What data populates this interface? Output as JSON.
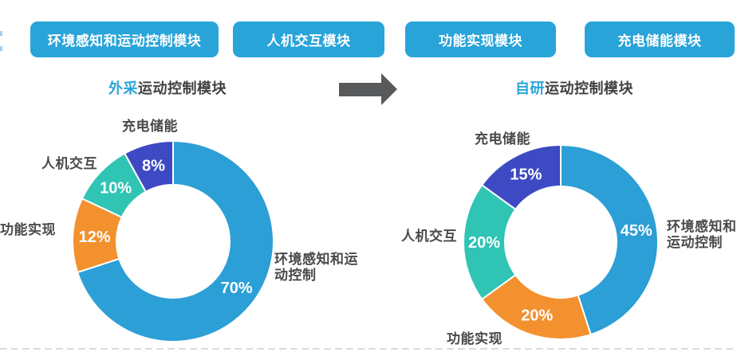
{
  "colors": {
    "accent": "#29A4D9",
    "title_text": "#404042",
    "label_text": "#4A4A4C",
    "arrow": "#58595B",
    "dash_line": "#DADADA",
    "segment_light_blue": "#2B9FD6",
    "segment_orange": "#F3912F",
    "segment_teal": "#2FC4B4",
    "segment_royal_blue": "#3E4AC3"
  },
  "modules": {
    "items": [
      {
        "label": "环境感知和运动控制模块"
      },
      {
        "label": "人机交互模块"
      },
      {
        "label": "功能实现模块"
      },
      {
        "label": "充电储能模块"
      }
    ]
  },
  "arrow": {
    "direction": "right",
    "color": "#58595B"
  },
  "chart_data": [
    {
      "type": "pie",
      "subtype": "donut",
      "title": "外采运动控制模块",
      "title_highlight": "外采",
      "title_rest": "运动控制模块",
      "unit": "%",
      "start_angle_deg": 0,
      "direction": "clockwise",
      "segments": [
        {
          "label": "环境感知和运动控制",
          "value": 70,
          "color": "#2B9FD6"
        },
        {
          "label": "功能实现",
          "value": 12,
          "color": "#F3912F"
        },
        {
          "label": "人机交互",
          "value": 10,
          "color": "#2FC4B4"
        },
        {
          "label": "充电储能",
          "value": 8,
          "color": "#3E4AC3"
        }
      ],
      "data_labels": [
        "70%",
        "12%",
        "10%",
        "8%"
      ]
    },
    {
      "type": "pie",
      "subtype": "donut",
      "title": "自研运动控制模块",
      "title_highlight": "自研",
      "title_rest": "运动控制模块",
      "unit": "%",
      "start_angle_deg": 0,
      "direction": "clockwise",
      "segments": [
        {
          "label": "环境感知和运动控制",
          "value": 45,
          "color": "#2B9FD6"
        },
        {
          "label": "功能实现",
          "value": 20,
          "color": "#F3912F"
        },
        {
          "label": "人机交互",
          "value": 20,
          "color": "#2FC4B4"
        },
        {
          "label": "充电储能",
          "value": 15,
          "color": "#3E4AC3"
        }
      ],
      "data_labels": [
        "45%",
        "20%",
        "20%",
        "15%"
      ]
    }
  ]
}
